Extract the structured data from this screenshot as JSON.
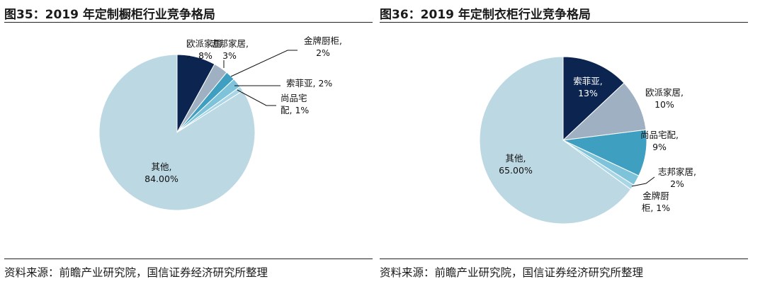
{
  "colors": {
    "navy": "#0c2550",
    "grey": "#9fb0c2",
    "teal": "#3f9fc0",
    "light_teal": "#7fc3da",
    "pale_teal": "#a8d6e6",
    "pale_blue": "#bcd8e3",
    "leader": "#111111",
    "slice_edge": "#ffffff"
  },
  "chart_data": [
    {
      "type": "pie",
      "title": "图35：2019 年定制橱柜行业竞争格局",
      "source": "资料来源：前瞻产业研究院，国信证券经济研究所整理",
      "start": "12 o'clock, clockwise",
      "series": [
        {
          "name": "欧派家居",
          "value": 8,
          "label_lines": [
            "欧派家居,",
            "8%"
          ],
          "color": "navy",
          "label_style": "leader"
        },
        {
          "name": "志邦家居",
          "value": 3,
          "label_lines": [
            "志邦家居,",
            "3%"
          ],
          "color": "grey",
          "label_style": "leader"
        },
        {
          "name": "金牌厨柜",
          "value": 2,
          "label_lines": [
            "金牌厨柜,",
            "2%"
          ],
          "color": "teal",
          "label_style": "leader"
        },
        {
          "name": "索菲亚",
          "value": 2,
          "label_lines": [
            "索菲亚, 2%"
          ],
          "color": "light_teal",
          "label_style": "leader"
        },
        {
          "name": "尚品宅配",
          "value": 1,
          "label_lines": [
            "尚品宅",
            "配, 1%"
          ],
          "color": "pale_teal",
          "label_style": "leader"
        },
        {
          "name": "其他",
          "value": 84,
          "label_lines": [
            "其他,",
            "84.00%"
          ],
          "color": "pale_blue",
          "label_style": "inside"
        }
      ]
    },
    {
      "type": "pie",
      "title": "图36：2019 年定制衣柜行业竞争格局",
      "source": "资料来源：前瞻产业研究院，国信证券经济研究所整理",
      "start": "12 o'clock, clockwise",
      "series": [
        {
          "name": "索菲亚",
          "value": 13,
          "label_lines": [
            "索菲亚,",
            "13%"
          ],
          "color": "navy",
          "label_style": "inside"
        },
        {
          "name": "欧派家居",
          "value": 10,
          "label_lines": [
            "欧派家居,",
            "10%"
          ],
          "color": "grey",
          "label_style": "outside"
        },
        {
          "name": "尚品宅配",
          "value": 9,
          "label_lines": [
            "尚品宅配,",
            "9%"
          ],
          "color": "teal",
          "label_style": "outside"
        },
        {
          "name": "志邦家居",
          "value": 2,
          "label_lines": [
            "志邦家居,",
            "2%"
          ],
          "color": "light_teal",
          "label_style": "leader"
        },
        {
          "name": "金牌厨柜",
          "value": 1,
          "label_lines": [
            "金牌厨",
            "柜, 1%"
          ],
          "color": "pale_teal",
          "label_style": "outside"
        },
        {
          "name": "其他",
          "value": 65,
          "label_lines": [
            "其他,",
            "65.00%"
          ],
          "color": "pale_blue",
          "label_style": "inside"
        }
      ]
    }
  ]
}
